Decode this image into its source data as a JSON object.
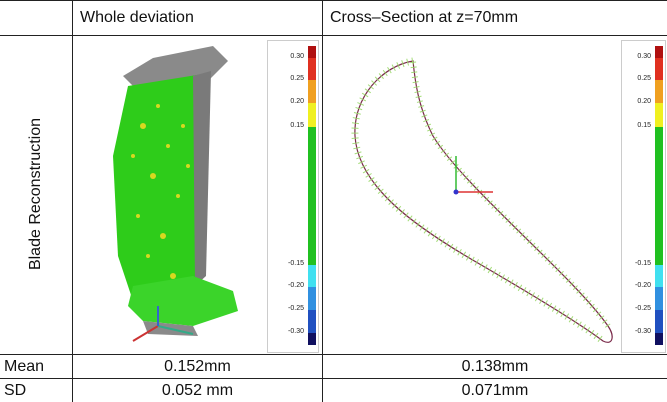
{
  "table": {
    "header": [
      "Whole deviation",
      "Cross–Section at z=70mm"
    ],
    "row_label": "Blade Reconstruction",
    "colorbar": [
      "0.30",
      "0.25",
      "0.20",
      "0.15",
      "-0.15",
      "-0.20",
      "-0.25",
      "-0.30"
    ],
    "rows": [
      [
        "Mean",
        "0.152mm",
        "0.138mm"
      ],
      [
        "SD",
        "0.052 mm",
        "0.071mm"
      ]
    ]
  }
}
